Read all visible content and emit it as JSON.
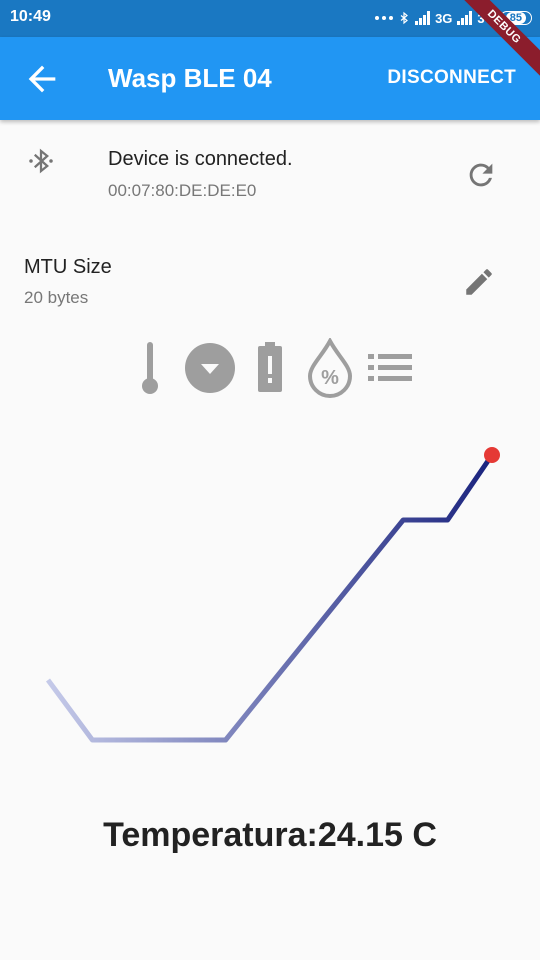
{
  "status_bar": {
    "time": "10:49",
    "network_1": "3G",
    "network_2": "3G",
    "battery": "85"
  },
  "app_bar": {
    "title": "Wasp BLE 04",
    "disconnect_label": "DISCONNECT",
    "debug_banner": "DEBUG"
  },
  "device": {
    "status": "Device is connected.",
    "mac": "00:07:80:DE:DE:E0"
  },
  "mtu": {
    "label": "MTU Size",
    "value": "20 bytes"
  },
  "sensor_icons": [
    "thermometer-icon",
    "dropdown-circle-icon",
    "battery-alert-icon",
    "humidity-percent-icon",
    "list-icon"
  ],
  "colors": {
    "status_bar": "#1a78c2",
    "app_bar": "#2196f3",
    "line_start": "#c5cae9",
    "line_end": "#1a237e",
    "last_point": "#e53935",
    "icon_gray": "#9e9e9e"
  },
  "chart_data": {
    "type": "line",
    "series": [
      {
        "values": [
          24.6,
          24.0,
          24.0,
          24.0,
          24.0,
          24.55,
          25.1,
          25.65,
          26.2,
          26.2,
          26.85
        ]
      }
    ],
    "ylim": [
      23.5,
      27.0
    ],
    "gradient": true,
    "last_point_marker": true
  },
  "reading": {
    "text": "Temperatura:24.15 C"
  }
}
